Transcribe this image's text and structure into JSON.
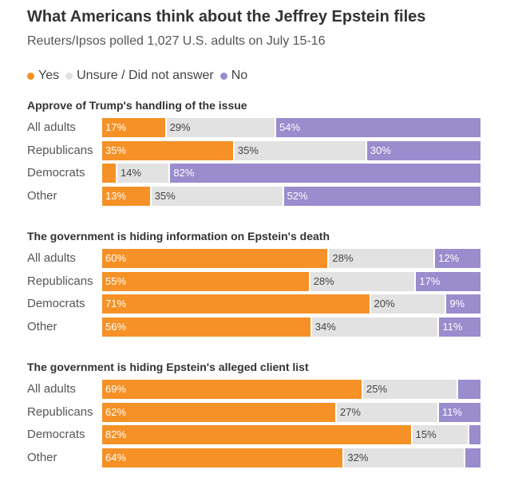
{
  "title": "What Americans think about the Jeffrey Epstein files",
  "subtitle": "Reuters/Ipsos polled 1,027 U.S. adults on July 15-16",
  "colors": {
    "yes": "#f59126",
    "unsure": "#e2e2e2",
    "no": "#9a8ccd"
  },
  "chart_data": {
    "type": "bar",
    "stacked": "100% horizontal",
    "legend": [
      {
        "key": "yes",
        "label": "Yes"
      },
      {
        "key": "unsure",
        "label": "Unsure / Did not answer"
      },
      {
        "key": "no",
        "label": "No"
      }
    ],
    "panels": [
      {
        "title": "Approve of Trump's handling of the issue",
        "rows": [
          {
            "label": "All adults",
            "values": [
              17,
              29,
              54
            ],
            "labels": [
              "17%",
              "29%",
              "54%"
            ]
          },
          {
            "label": "Republicans",
            "values": [
              35,
              35,
              30
            ],
            "labels": [
              "35%",
              "35%",
              "30%"
            ]
          },
          {
            "label": "Democrats",
            "values": [
              4,
              14,
              82
            ],
            "labels": [
              "",
              "14%",
              "82%"
            ]
          },
          {
            "label": "Other",
            "values": [
              13,
              35,
              52
            ],
            "labels": [
              "13%",
              "35%",
              "52%"
            ]
          }
        ]
      },
      {
        "title": "The government is hiding information on Epstein's death",
        "rows": [
          {
            "label": "All adults",
            "values": [
              60,
              28,
              12
            ],
            "labels": [
              "60%",
              "28%",
              "12%"
            ]
          },
          {
            "label": "Republicans",
            "values": [
              55,
              28,
              17
            ],
            "labels": [
              "55%",
              "28%",
              "17%"
            ]
          },
          {
            "label": "Democrats",
            "values": [
              71,
              20,
              9
            ],
            "labels": [
              "71%",
              "20%",
              "9%"
            ]
          },
          {
            "label": "Other",
            "values": [
              56,
              34,
              11
            ],
            "labels": [
              "56%",
              "34%",
              "11%"
            ]
          }
        ]
      },
      {
        "title": "The government is hiding Epstein's alleged client list",
        "rows": [
          {
            "label": "All adults",
            "values": [
              69,
              25,
              6
            ],
            "labels": [
              "69%",
              "25%",
              ""
            ]
          },
          {
            "label": "Republicans",
            "values": [
              62,
              27,
              11
            ],
            "labels": [
              "62%",
              "27%",
              "11%"
            ]
          },
          {
            "label": "Democrats",
            "values": [
              82,
              15,
              3
            ],
            "labels": [
              "82%",
              "15%",
              ""
            ]
          },
          {
            "label": "Other",
            "values": [
              64,
              32,
              4
            ],
            "labels": [
              "64%",
              "32%",
              ""
            ]
          }
        ]
      }
    ]
  }
}
